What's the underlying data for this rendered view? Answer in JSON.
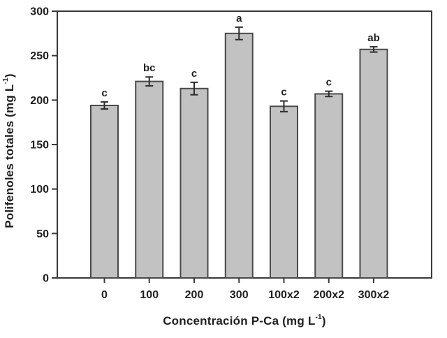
{
  "figure": {
    "background": "#ffffff"
  },
  "chart_data": {
    "type": "bar",
    "title": "",
    "categories": [
      "0",
      "100",
      "200",
      "300",
      "100x2",
      "200x2",
      "300x2"
    ],
    "values": [
      194,
      221,
      213,
      275,
      193,
      207,
      257
    ],
    "error_bars": [
      4,
      5,
      7,
      7,
      6,
      3,
      3
    ],
    "sig_letters": [
      "c",
      "bc",
      "c",
      "a",
      "c",
      "c",
      "ab"
    ],
    "xlabel": "Concentración P-Ca (mg L-1)",
    "ylabel": "Polifenoles totales (mg L-1)",
    "ylim": [
      0,
      300
    ],
    "yticks": [
      0,
      50,
      100,
      150,
      200,
      250,
      300
    ],
    "grid": false,
    "legend": "none",
    "colors": {
      "bar_fill": "#c2c2c2",
      "bar_stroke": "#4a4a4a",
      "axis": "#3a3a3a",
      "error_bar": "#2e2e2e",
      "text": "#1f1f1f"
    }
  },
  "labels": {
    "ylabel_pre": "Polifenoles totales (mg L",
    "ylabel_sup": "-1",
    "ylabel_post": ")",
    "xlabel_pre": "Concentración P-Ca (mg L",
    "xlabel_sup": "-1",
    "xlabel_post": ")"
  }
}
